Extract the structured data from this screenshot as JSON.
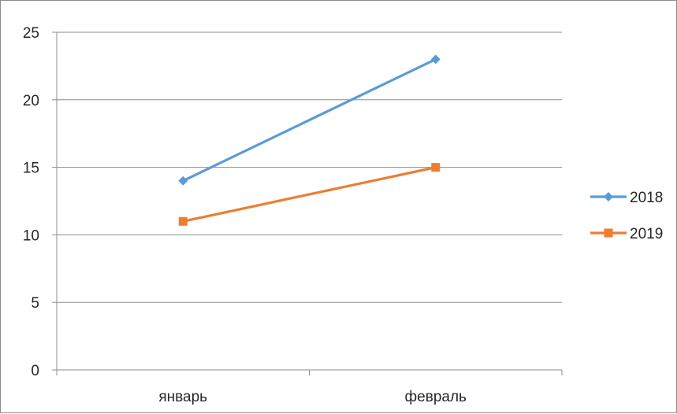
{
  "chart_data": {
    "type": "line",
    "categories": [
      "январь",
      "февраль"
    ],
    "series": [
      {
        "name": "2018",
        "values": [
          14,
          23
        ],
        "color": "#5b9bd5",
        "marker": "diamond"
      },
      {
        "name": "2019",
        "values": [
          11,
          15
        ],
        "color": "#ed7d31",
        "marker": "square"
      }
    ],
    "ylim": [
      0,
      25
    ],
    "yticks": [
      0,
      5,
      10,
      15,
      20,
      25
    ],
    "grid": true,
    "legend": "right",
    "title": "",
    "xlabel": "",
    "ylabel": ""
  }
}
